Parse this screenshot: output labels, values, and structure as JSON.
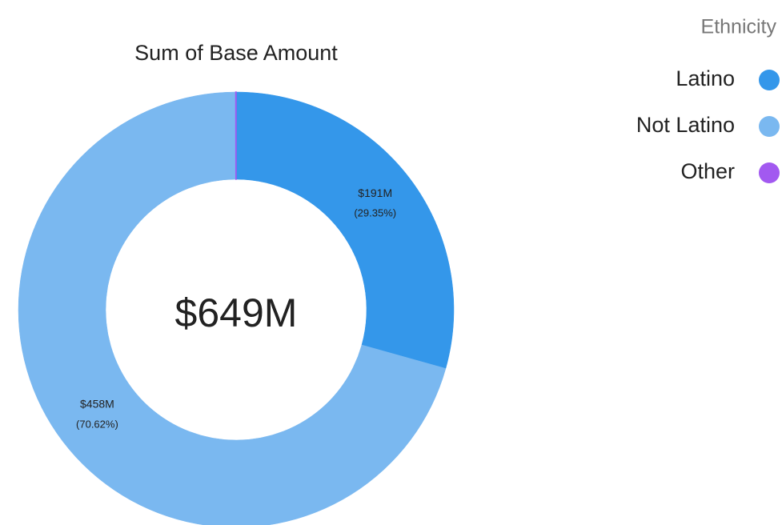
{
  "chart_data": {
    "type": "donut",
    "title": "Sum of Base Amount",
    "legend_title": "Ethnicity",
    "legend_position": "top-right",
    "categories": [
      "Latino",
      "Not Latino",
      "Other"
    ],
    "values": [
      29.35,
      70.62,
      0.03
    ],
    "value_labels": [
      "(29.35%)",
      "(70.62%)",
      null
    ],
    "amounts": [
      191,
      458,
      0.2
    ],
    "amount_labels": [
      "$191M",
      "$458M",
      null
    ],
    "colors": [
      "#3497ea",
      "#7ab8f0",
      "#a259f0"
    ],
    "total": 649,
    "total_label": "$649M"
  }
}
